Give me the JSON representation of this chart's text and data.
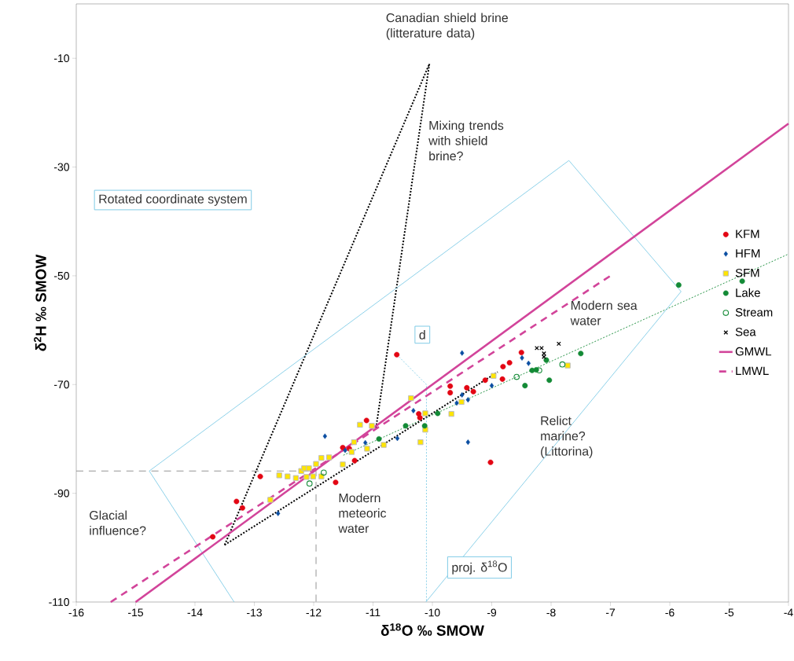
{
  "chart_data": {
    "type": "scatter",
    "xlabel": "δ$^{18}$O ‰ SMOW",
    "ylabel": "δ$^{2}$H ‰ SMOW",
    "xlim": [
      -16,
      -4
    ],
    "ylim": [
      -110,
      0
    ],
    "xticks": [
      -16,
      -15,
      -14,
      -13,
      -12,
      -11,
      -10,
      -9,
      -8,
      -7,
      -6,
      -5,
      -4
    ],
    "yticks": [
      -110,
      -90,
      -70,
      -50,
      -30,
      -10
    ],
    "legend": "right",
    "grid": false,
    "series": [
      {
        "name": "KFM",
        "marker": "circle",
        "color": "#e30613",
        "x": [
          -13.7,
          -13.3,
          -13.2,
          -12.9,
          -11.63,
          -11.11,
          -11.51,
          -11.31,
          -11.4,
          -10.6,
          -8.5,
          -8.7,
          -8.81,
          -8.82,
          -9.11,
          -9.42,
          -9.31,
          -9.7,
          -9.7,
          -10.23,
          -10.21,
          -9.02
        ],
        "values": [
          -98,
          -91.5,
          -92.7,
          -86.9,
          -88,
          -76.6,
          -81.6,
          -84,
          -81.8,
          -64.5,
          -64.1,
          -66,
          -66.7,
          -69,
          -69.2,
          -70.6,
          -71.3,
          -70.3,
          -71.5,
          -75.4,
          -76.1,
          -84.3
        ]
      },
      {
        "name": "HFM",
        "marker": "diamond",
        "color": "#0b4ea2",
        "x": [
          -9.5,
          -8.49,
          -8.38,
          -9.0,
          -9.5,
          -9.4,
          -9.59,
          -9.4,
          -10.32,
          -10.59,
          -11.81,
          -12.6,
          -11.47,
          -11.13
        ],
        "values": [
          -64.2,
          -65.1,
          -66.1,
          -70.2,
          -71.9,
          -72.8,
          -73.4,
          -80.6,
          -74.8,
          -79.9,
          -79.5,
          -93.7,
          -82.1,
          -80.7
        ]
      },
      {
        "name": "SFM",
        "marker": "square",
        "color": "#ffe500",
        "x": [
          -12.58,
          -12.44,
          -12.3,
          -12.21,
          -12.16,
          -12.08,
          -11.96,
          -11.87,
          -11.74,
          -12.01,
          -11.87,
          -12.12,
          -12.73,
          -11.32,
          -11.51,
          -11.22,
          -11.02,
          -11.1,
          -10.82,
          -11.36,
          -10.36,
          -10.12,
          -9.68,
          -10.12,
          -10.2,
          -9.51,
          -7.72,
          -8.97
        ],
        "values": [
          -86.7,
          -86.9,
          -87.2,
          -85.9,
          -85.4,
          -85.4,
          -84.6,
          -83.5,
          -83.4,
          -86.9,
          -86.9,
          -87,
          -91.2,
          -80.6,
          -84.7,
          -77.4,
          -77.6,
          -81.8,
          -81.1,
          -82.4,
          -72.5,
          -75.3,
          -75.4,
          -78.3,
          -80.6,
          -73.2,
          -66.5,
          -68.4
        ]
      },
      {
        "name": "Lake",
        "marker": "circle",
        "color": "#138a36",
        "x": [
          -5.85,
          -4.78,
          -7.5,
          -8.08,
          -8.03,
          -8.44,
          -8.32,
          -8.25,
          -10.45,
          -10.13,
          -9.91,
          -10.9
        ],
        "values": [
          -51.7,
          -51,
          -64.3,
          -65.5,
          -69.2,
          -70.2,
          -67.4,
          -67.3,
          -77.6,
          -77.6,
          -75.3,
          -80
        ]
      },
      {
        "name": "Stream",
        "marker": "open circle",
        "color": "#138a36",
        "x": [
          -7.81,
          -8.2,
          -8.58,
          -12.07,
          -11.83
        ],
        "values": [
          -66.3,
          -67.4,
          -68.6,
          -88.2,
          -86.2
        ]
      },
      {
        "name": "Sea",
        "marker": "cross",
        "color": "#000000",
        "x": [
          -8.24,
          -8.16,
          -8.12,
          -8.12,
          -7.87
        ],
        "values": [
          -63.3,
          -63.3,
          -64.3,
          -64.9,
          -62.5
        ]
      },
      {
        "name": "GMWL",
        "type": "line",
        "line_style": "solid",
        "color": "#d2449a",
        "x": [
          -15,
          -4
        ],
        "values": [
          -110,
          -22
        ]
      },
      {
        "name": "LMWL",
        "type": "line",
        "line_style": "dashed",
        "color": "#d2449a",
        "x": [
          -15.42,
          -7
        ],
        "values": [
          -110,
          -50
        ]
      },
      {
        "type": "line",
        "line_style": "dotted",
        "color": "#138a36",
        "x": [
          -11.5,
          -4
        ],
        "values": [
          -83,
          -46
        ]
      },
      {
        "type": "line",
        "line_style": "dotted",
        "color": "#000000",
        "x": [
          -13.5,
          -10.05
        ],
        "values": [
          -99.5,
          -11
        ]
      },
      {
        "type": "line",
        "line_style": "dotted",
        "color": "#000000",
        "x": [
          -10.95,
          -10.05
        ],
        "values": [
          -78,
          -11
        ]
      },
      {
        "type": "line",
        "line_style": "dotted",
        "color": "#000000",
        "x": [
          -13.5,
          -8.9
        ],
        "values": [
          -99.5,
          -67.7
        ]
      },
      {
        "type": "line",
        "line_style": "solid",
        "color": "#7fcbe6",
        "x": [
          -13.34,
          -14.77,
          -7.7,
          -5.81,
          -10.11
        ],
        "values": [
          -110,
          -85.9,
          -28.8,
          -52.9,
          -110
        ]
      },
      {
        "type": "line",
        "line_style": "dashed",
        "color": "#888888",
        "x": [
          -16,
          -11.96,
          -11.96
        ],
        "values": [
          -85.9,
          -85.9,
          -110
        ]
      },
      {
        "type": "line",
        "line_style": "dotted",
        "color": "#7fcbe6",
        "x": [
          -10.6,
          -10.1,
          -10.1
        ],
        "values": [
          -64.5,
          -70,
          -110
        ]
      }
    ],
    "annotations": [
      "Canadian shield brine (litterature data)",
      "Mixing trends with shield brine?",
      "Rotated coordinate system",
      "Modern sea water",
      "d",
      "Relict marine? (Littorina)",
      "Modern meteoric water",
      "Glacial influence?",
      "proj. δ$^{18}$O"
    ]
  }
}
